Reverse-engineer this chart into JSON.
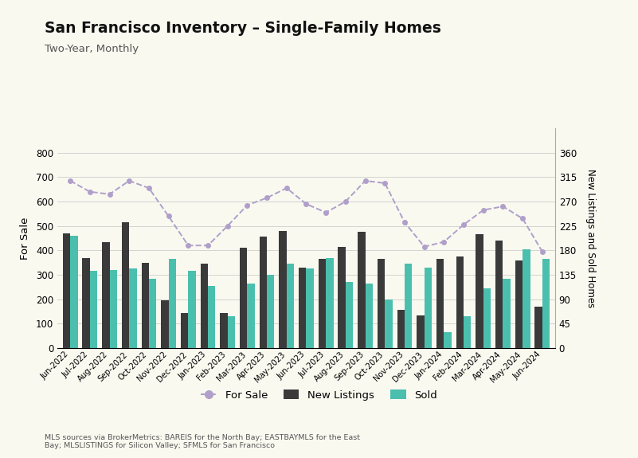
{
  "title": "San Francisco Inventory – Single-Family Homes",
  "subtitle": "Two-Year, Monthly",
  "ylabel_left": "For Sale",
  "ylabel_right": "New Listings and Sold Homes",
  "footnote": "MLS sources via BrokerMetrics: BAREIS for the North Bay; EASTBAYMLS for the East\nBay; MLSLISTINGS for Silicon Valley; SFMLS for San Francisco",
  "categories": [
    "Jun-2022",
    "Jul-2022",
    "Aug-2022",
    "Sep-2022",
    "Oct-2022",
    "Nov-2022",
    "Dec-2022",
    "Jan-2023",
    "Feb-2023",
    "Mar-2023",
    "Apr-2023",
    "May-2023",
    "Jun-2023",
    "Jul-2023",
    "Aug-2023",
    "Sep-2023",
    "Oct-2023",
    "Nov-2023",
    "Dec-2023",
    "Jan-2024",
    "Feb-2024",
    "Mar-2024",
    "Apr-2024",
    "May-2024",
    "Jun-2024"
  ],
  "for_sale": [
    685,
    640,
    630,
    685,
    655,
    540,
    420,
    420,
    500,
    585,
    615,
    655,
    590,
    555,
    600,
    685,
    675,
    515,
    415,
    435,
    505,
    565,
    580,
    530,
    395
  ],
  "new_listings": [
    470,
    370,
    435,
    515,
    350,
    195,
    145,
    345,
    145,
    410,
    455,
    480,
    330,
    365,
    415,
    475,
    365,
    155,
    135,
    365,
    375,
    465,
    440,
    360,
    170
  ],
  "sold": [
    460,
    315,
    320,
    325,
    285,
    365,
    315,
    255,
    130,
    265,
    300,
    345,
    325,
    370,
    270,
    265,
    200,
    345,
    330,
    65,
    130,
    245,
    285,
    405,
    365
  ],
  "for_sale_color": "#b09fca",
  "new_listings_color": "#3a3a3a",
  "sold_color": "#4bbfad",
  "background_color": "#f9f9f0",
  "ylim_left": [
    0,
    900
  ],
  "ylim_right": [
    0,
    405
  ],
  "yticks_left": [
    0,
    100,
    200,
    300,
    400,
    500,
    600,
    700,
    800
  ],
  "yticks_right": [
    0,
    45,
    90,
    135,
    180,
    225,
    270,
    315,
    360
  ]
}
